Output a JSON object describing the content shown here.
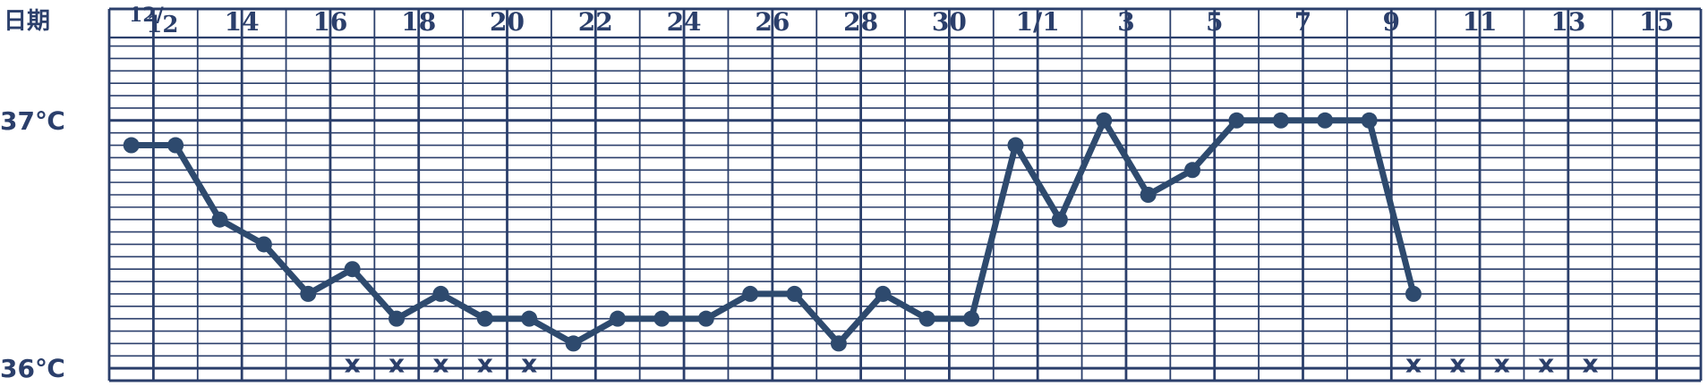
{
  "chart_data": {
    "type": "line",
    "title": "",
    "xlabel": "日期",
    "ylabel": "",
    "y_tick_labels": [
      "37℃",
      "36℃"
    ],
    "ylim": [
      35.95,
      37.45
    ],
    "grid": true,
    "line_color": "#2e4a6e",
    "grid_color": "#2b3f6b",
    "x_labels": [
      "12/12",
      "14",
      "16",
      "18",
      "20",
      "22",
      "24",
      "26",
      "28",
      "30",
      "1/1",
      "3",
      "5",
      "7",
      "9",
      "11",
      "13",
      "15"
    ],
    "series": [
      {
        "values": [
          36.9,
          36.9,
          36.6,
          36.5,
          36.3,
          36.4,
          36.2,
          36.3,
          36.2,
          36.2,
          36.1,
          36.2,
          36.2,
          36.2,
          36.3,
          36.3,
          36.1,
          36.3,
          36.2,
          36.2,
          36.9,
          36.6,
          37.0,
          36.7,
          36.8,
          37.0,
          37.0,
          37.0,
          37.0,
          36.3
        ]
      }
    ],
    "annotations": [
      {
        "days": [
          15,
          16,
          17,
          18,
          19
        ],
        "mark": "x"
      },
      {
        "days": [
          9,
          10,
          11,
          12,
          13
        ],
        "mark": "x"
      }
    ]
  }
}
